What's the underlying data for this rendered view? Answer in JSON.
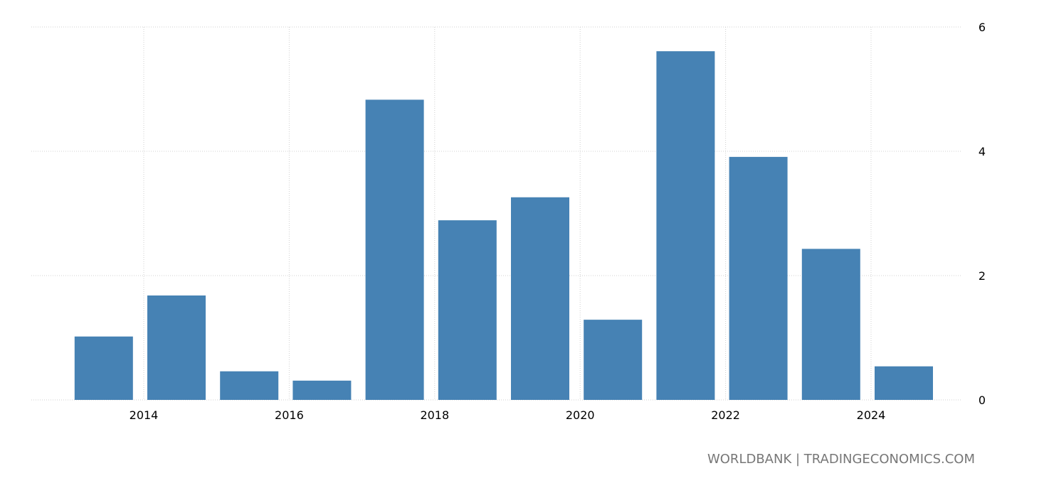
{
  "chart_data": {
    "type": "bar",
    "categories": [
      "2013",
      "2014",
      "2015",
      "2016",
      "2017",
      "2018",
      "2019",
      "2020",
      "2021",
      "2022",
      "2023",
      "2024"
    ],
    "values": [
      1.02,
      1.68,
      0.46,
      0.31,
      4.83,
      2.89,
      3.26,
      1.29,
      5.61,
      3.91,
      2.43,
      0.54
    ],
    "title": "",
    "xlabel": "",
    "ylabel": "",
    "ylim": [
      0,
      6
    ],
    "yticks": [
      "0",
      "2",
      "4",
      "6"
    ],
    "xticks": [
      "2014",
      "2016",
      "2018",
      "2020",
      "2022",
      "2024"
    ],
    "grid": true,
    "y_axis_side": "right",
    "bar_color": "#4682b4"
  },
  "source": "WORLDBANK | TRADINGECONOMICS.COM"
}
